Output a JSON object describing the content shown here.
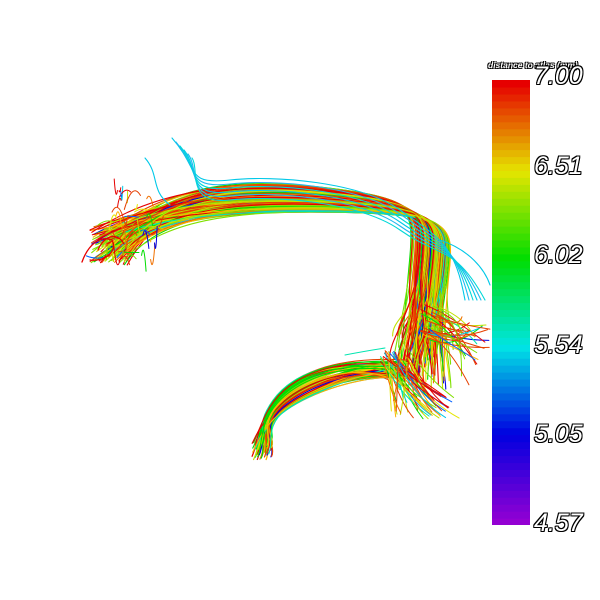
{
  "legend": {
    "title": "distance to atlas (mm)",
    "ticks": [
      "7.00",
      "6.51",
      "6.02",
      "5.54",
      "5.05",
      "4.57"
    ],
    "colormap": [
      "#9400d3",
      "#0000e0",
      "#00e5e5",
      "#00dd00",
      "#e5e500",
      "#e60000"
    ]
  },
  "fibers": {
    "palette": [
      "#e60000",
      "#e64000",
      "#f07000",
      "#ffb000",
      "#e5e500",
      "#c0e000",
      "#80e000",
      "#00dd00",
      "#00e5b0",
      "#00c8e8",
      "#0060ff",
      "#0000e0"
    ]
  }
}
